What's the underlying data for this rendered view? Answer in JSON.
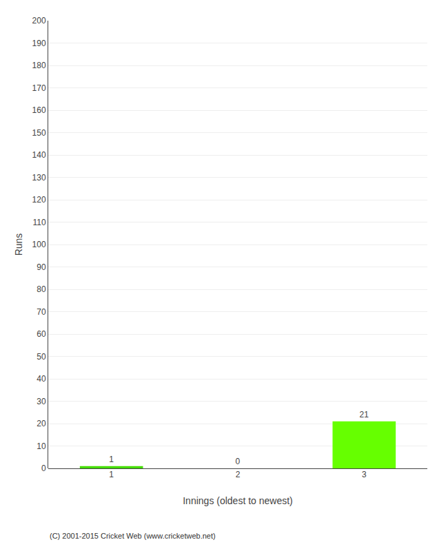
{
  "chart_data": {
    "type": "bar",
    "categories": [
      "1",
      "2",
      "3"
    ],
    "values": [
      1,
      0,
      21
    ],
    "colors": [
      "#44dd00",
      "#44dd00",
      "#66ff00"
    ],
    "xlabel": "Innings (oldest to newest)",
    "ylabel": "Runs",
    "ylim": [
      0,
      200
    ],
    "yticks": [
      0,
      10,
      20,
      30,
      40,
      50,
      60,
      70,
      80,
      90,
      100,
      110,
      120,
      130,
      140,
      150,
      160,
      170,
      180,
      190,
      200
    ],
    "grid": true,
    "data_labels": true,
    "annotations": [
      "(C) 2001-2015 Cricket Web (www.cricketweb.net)"
    ]
  }
}
